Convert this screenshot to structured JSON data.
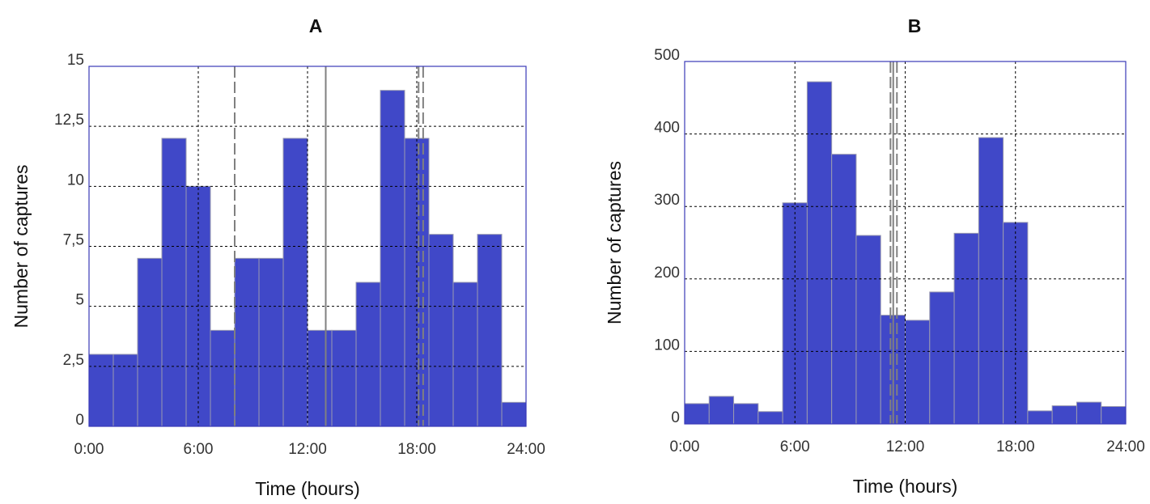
{
  "chart_data": [
    {
      "type": "bar",
      "title": "A",
      "xlabel": "Time (hours)",
      "ylabel": "Number of captures",
      "xlim": [
        0,
        24
      ],
      "ylim": [
        0,
        15
      ],
      "grid": true,
      "bar_color": "#4048c8",
      "x_ticks": [
        "0:00",
        "6:00",
        "12:00",
        "18:00",
        "24:00"
      ],
      "x_tick_hours": [
        0,
        6,
        12,
        18,
        24
      ],
      "y_ticks": [
        "0",
        "2,5",
        "5",
        "7,5",
        "10",
        "12,5",
        "15"
      ],
      "y_tick_values": [
        0,
        2.5,
        5,
        7.5,
        10,
        12.5,
        15
      ],
      "bin_width_hours": 1.333,
      "values": [
        3,
        3,
        7,
        12,
        10,
        4,
        7,
        7,
        12,
        4,
        4,
        6,
        14,
        12,
        8,
        6,
        8,
        1
      ],
      "vertical_lines": [
        {
          "hour": 8.0,
          "style": "dashed"
        },
        {
          "hour": 13.0,
          "style": "solid"
        },
        {
          "hour": 18.1,
          "style": "dashed"
        },
        {
          "hour": 18.35,
          "style": "dashed"
        }
      ]
    },
    {
      "type": "bar",
      "title": "B",
      "xlabel": "Time (hours)",
      "ylabel": "Number of captures",
      "xlim": [
        0,
        24
      ],
      "ylim": [
        0,
        500
      ],
      "grid": true,
      "bar_color": "#4048c8",
      "x_ticks": [
        "0:00",
        "6:00",
        "12:00",
        "18:00",
        "24:00"
      ],
      "x_tick_hours": [
        0,
        6,
        12,
        18,
        24
      ],
      "y_ticks": [
        "0",
        "100",
        "200",
        "300",
        "400",
        "500"
      ],
      "y_tick_values": [
        0,
        100,
        200,
        300,
        400,
        500
      ],
      "bin_width_hours": 1.333,
      "values": [
        28,
        38,
        28,
        17,
        305,
        472,
        372,
        260,
        150,
        143,
        182,
        263,
        395,
        278,
        18,
        25,
        30,
        24
      ],
      "vertical_lines": [
        {
          "hour": 11.2,
          "style": "dashed"
        },
        {
          "hour": 11.35,
          "style": "solid"
        },
        {
          "hour": 11.55,
          "style": "dashed"
        }
      ]
    }
  ]
}
